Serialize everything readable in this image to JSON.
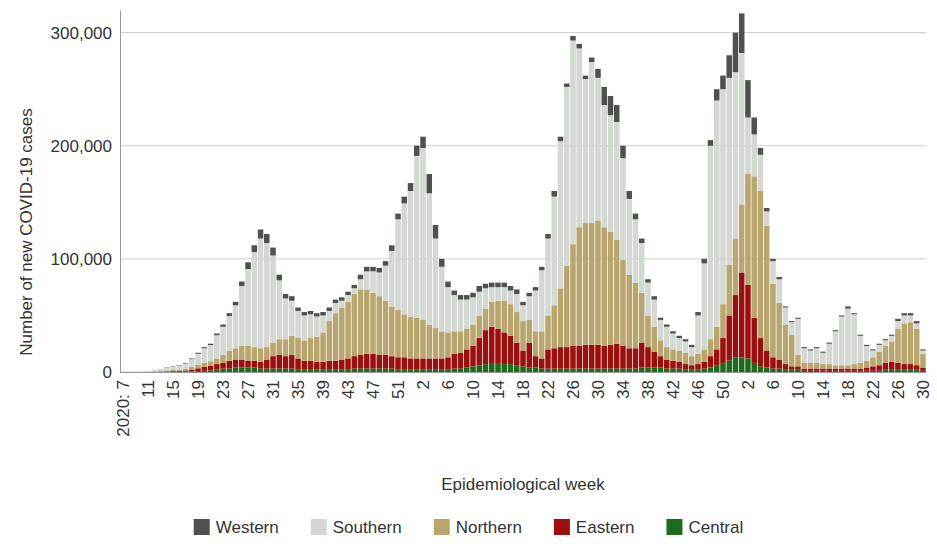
{
  "chart_data": {
    "type": "bar",
    "stacked": true,
    "grid": true,
    "legend": "bottom",
    "x_label": "Epidemiological week",
    "y_label": "Number of new COVID-19 cases",
    "ylim": [
      0,
      320000
    ],
    "yticks": [
      0,
      {
        "value": 100000,
        "label": "100,000"
      },
      {
        "value": 200000,
        "label": "200,000"
      },
      {
        "value": 300000,
        "label": "300,000"
      }
    ],
    "categories": [
      "2020: 7",
      null,
      null,
      null,
      "11",
      null,
      null,
      null,
      "15",
      null,
      null,
      null,
      "19",
      null,
      null,
      null,
      "23",
      null,
      null,
      null,
      "27",
      null,
      null,
      null,
      "31",
      null,
      null,
      null,
      "35",
      null,
      null,
      null,
      "39",
      null,
      null,
      null,
      "43",
      null,
      null,
      null,
      "47",
      null,
      null,
      null,
      "51",
      null,
      null,
      null,
      "2",
      null,
      null,
      null,
      "6",
      null,
      null,
      null,
      "10",
      null,
      null,
      null,
      "14",
      null,
      null,
      null,
      "18",
      null,
      null,
      null,
      "22",
      null,
      null,
      null,
      "26",
      null,
      null,
      null,
      "30",
      null,
      null,
      null,
      "34",
      null,
      null,
      null,
      "38",
      null,
      null,
      null,
      "42",
      null,
      null,
      null,
      "46",
      null,
      null,
      null,
      "50",
      null,
      null,
      null,
      "2",
      null,
      null,
      null,
      "6",
      null,
      null,
      null,
      "10",
      null,
      null,
      null,
      "14",
      null,
      null,
      null,
      "18",
      null,
      null,
      null,
      "22",
      null,
      null,
      null,
      "26",
      null,
      null,
      null,
      "30"
    ],
    "series": [
      {
        "name": "Western",
        "color": "#505050",
        "values": [
          0,
          0,
          0,
          0,
          0,
          100,
          200,
          300,
          300,
          400,
          500,
          600,
          900,
          1000,
          1200,
          1500,
          2000,
          2500,
          3000,
          4000,
          6000,
          6000,
          8000,
          8000,
          7000,
          5000,
          4000,
          4000,
          3000,
          3000,
          3000,
          3000,
          3000,
          3000,
          3000,
          3000,
          3000,
          3000,
          4000,
          4000,
          4000,
          4000,
          4000,
          5000,
          5000,
          6000,
          7000,
          9000,
          10000,
          17000,
          12000,
          7000,
          5000,
          4000,
          4000,
          4000,
          4000,
          5000,
          4000,
          4000,
          4000,
          4000,
          4000,
          4000,
          3000,
          3000,
          3000,
          3000,
          4000,
          5000,
          4000,
          3000,
          4000,
          4000,
          3000,
          4000,
          8000,
          16000,
          17000,
          15000,
          11000,
          7000,
          5000,
          4000,
          3000,
          3000,
          2000,
          2000,
          2000,
          2000,
          2000,
          2000,
          3000,
          4000,
          5000,
          10000,
          12000,
          20000,
          35000,
          35000,
          33000,
          15000,
          6000,
          3000,
          2000,
          2000,
          1000,
          1000,
          1000,
          1000,
          1000,
          1000,
          1000,
          1000,
          1000,
          1000,
          2000,
          1000,
          1000,
          1000,
          1000,
          1000,
          1000,
          1000,
          2000,
          2000,
          2000,
          2000,
          1000
        ]
      },
      {
        "name": "Southern",
        "color": "#d3d8d3",
        "values": [
          0,
          0,
          100,
          200,
          300,
          900,
          1400,
          2300,
          2900,
          3400,
          4500,
          7000,
          9800,
          13000,
          14300,
          20500,
          25000,
          30500,
          38000,
          53000,
          68000,
          84000,
          97000,
          92000,
          77000,
          52000,
          36000,
          31000,
          24000,
          22000,
          21000,
          18000,
          15000,
          9000,
          9000,
          6000,
          6000,
          5000,
          9000,
          16000,
          19000,
          21000,
          31000,
          49000,
          80000,
          98000,
          111000,
          143000,
          152000,
          116000,
          79000,
          57000,
          40000,
          32000,
          28000,
          26000,
          24000,
          21000,
          18000,
          13000,
          12000,
          12000,
          12000,
          16000,
          14000,
          21000,
          36000,
          54000,
          68000,
          96000,
          130000,
          158000,
          180000,
          158000,
          127000,
          142000,
          126000,
          108000,
          103000,
          104000,
          90000,
          67000,
          56000,
          44000,
          29000,
          24000,
          18000,
          18000,
          14000,
          11000,
          10000,
          8000,
          34000,
          76000,
          171000,
          200000,
          190000,
          165000,
          147000,
          134000,
          50000,
          37000,
          32000,
          13000,
          20000,
          21000,
          15000,
          11000,
          32000,
          13000,
          11000,
          13000,
          10000,
          18000,
          30000,
          43000,
          50000,
          44000,
          24000,
          13000,
          6000,
          6000,
          5000,
          5000,
          7000,
          7000,
          6000,
          5000,
          3000
        ]
      },
      {
        "name": "Northern",
        "color": "#b9a56e",
        "values": [
          0,
          0,
          0,
          0,
          100,
          300,
          500,
          800,
          1000,
          1200,
          1600,
          2200,
          3000,
          3500,
          4000,
          5000,
          7000,
          9000,
          10000,
          12000,
          13000,
          12000,
          12000,
          11000,
          12000,
          14000,
          15000,
          17000,
          18000,
          18000,
          20000,
          22000,
          26000,
          35000,
          42000,
          46000,
          50000,
          55000,
          58000,
          57000,
          54000,
          52000,
          48000,
          44000,
          42000,
          38000,
          37000,
          36000,
          34000,
          30000,
          27000,
          24000,
          22000,
          20000,
          19000,
          18000,
          19000,
          20000,
          19000,
          22000,
          25000,
          28000,
          28000,
          27000,
          26000,
          20000,
          22000,
          24000,
          30000,
          38000,
          52000,
          72000,
          90000,
          105000,
          108000,
          108000,
          110000,
          105000,
          100000,
          92000,
          76000,
          65000,
          58000,
          44000,
          28000,
          22000,
          14000,
          11000,
          10000,
          10000,
          10000,
          8000,
          9000,
          11000,
          15000,
          20000,
          30000,
          45000,
          50000,
          60000,
          98000,
          125000,
          130000,
          110000,
          65000,
          50000,
          35000,
          28000,
          10000,
          5000,
          5000,
          5000,
          4000,
          4000,
          3000,
          3000,
          3000,
          4000,
          5000,
          6000,
          8000,
          12000,
          15000,
          18000,
          30000,
          36000,
          37000,
          32000,
          12000
        ]
      },
      {
        "name": "Eastern",
        "color": "#9c0f0f",
        "values": [
          0,
          0,
          0,
          0,
          100,
          200,
          300,
          500,
          600,
          800,
          1100,
          1700,
          2500,
          3500,
          4000,
          5000,
          5000,
          7000,
          7000,
          7000,
          6000,
          6000,
          6000,
          8000,
          11000,
          12000,
          11000,
          12000,
          10000,
          8000,
          8000,
          7000,
          7000,
          8000,
          8000,
          9000,
          10000,
          11000,
          12000,
          13000,
          13000,
          12000,
          12000,
          11000,
          11000,
          11000,
          10000,
          10000,
          10000,
          10000,
          10000,
          10000,
          11000,
          13000,
          14000,
          16000,
          18000,
          24000,
          30000,
          32000,
          30000,
          28000,
          25000,
          20000,
          14000,
          22000,
          10000,
          9000,
          17000,
          18000,
          19000,
          19000,
          20000,
          20000,
          21000,
          21000,
          21000,
          20000,
          21000,
          22000,
          20000,
          18000,
          18000,
          22000,
          18000,
          14000,
          10000,
          8000,
          7000,
          6000,
          5000,
          4000,
          5000,
          6000,
          10000,
          14000,
          22000,
          40000,
          55000,
          75000,
          65000,
          40000,
          25000,
          15000,
          10000,
          8000,
          5000,
          3000,
          3000,
          2000,
          2000,
          2000,
          2000,
          2000,
          2000,
          2000,
          2000,
          2000,
          2000,
          3000,
          4000,
          5000,
          6000,
          7000,
          6000,
          5000,
          5000,
          4000,
          3000
        ]
      },
      {
        "name": "Central",
        "color": "#1b6d1b",
        "values": [
          0,
          0,
          0,
          0,
          0,
          0,
          100,
          100,
          200,
          200,
          300,
          500,
          800,
          1000,
          1500,
          2000,
          3000,
          3000,
          4000,
          4000,
          4000,
          4000,
          3000,
          3000,
          3000,
          3000,
          3000,
          3000,
          2000,
          2000,
          2000,
          2000,
          2000,
          2000,
          2000,
          2000,
          2000,
          3000,
          3000,
          3000,
          3000,
          3000,
          3000,
          3000,
          2000,
          2000,
          2000,
          2000,
          2000,
          2000,
          2000,
          2000,
          2000,
          3000,
          3000,
          4000,
          5000,
          6000,
          7000,
          8000,
          8000,
          7000,
          7000,
          6000,
          5000,
          4000,
          4000,
          3000,
          3000,
          3000,
          3000,
          3000,
          3000,
          3000,
          3000,
          3000,
          3000,
          3000,
          3000,
          3000,
          3000,
          3000,
          3000,
          4000,
          4000,
          4000,
          4000,
          3000,
          3000,
          3000,
          2000,
          2000,
          2000,
          3000,
          4000,
          6000,
          8000,
          10000,
          13000,
          13000,
          12000,
          8000,
          5000,
          4000,
          3000,
          3000,
          2000,
          2000,
          2000,
          1000,
          1000,
          1000,
          1000,
          1000,
          1000,
          1000,
          1000,
          1000,
          1000,
          1000,
          1000,
          1000,
          2000,
          2000,
          2000,
          2000,
          2000,
          2000,
          1000
        ]
      }
    ]
  }
}
